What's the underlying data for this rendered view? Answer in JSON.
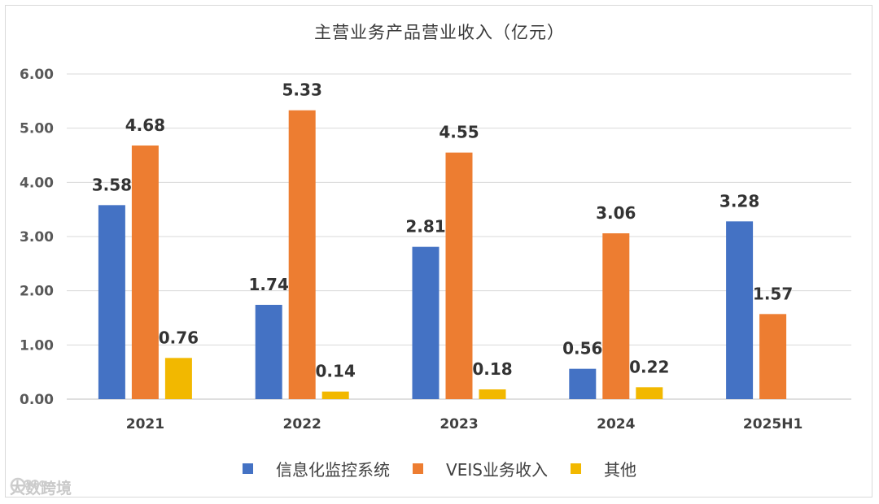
{
  "chart_data": {
    "type": "bar",
    "title": "主营业务产品营业收入（亿元）",
    "categories": [
      "2021",
      "2022",
      "2023",
      "2024",
      "2025H1"
    ],
    "series": [
      {
        "name": "信息化监控系统",
        "color": "#4472C4",
        "values": [
          3.58,
          1.74,
          2.81,
          0.56,
          3.28
        ]
      },
      {
        "name": "VEIS业务收入",
        "color": "#ED7D31",
        "values": [
          4.68,
          5.33,
          4.55,
          3.06,
          1.57
        ]
      },
      {
        "name": "其他",
        "color": "#F2B800",
        "values": [
          0.76,
          0.14,
          0.18,
          0.22,
          null
        ]
      }
    ],
    "value_labels": [
      [
        "3.58",
        "1.74",
        "2.81",
        "0.56",
        "3.28"
      ],
      [
        "4.68",
        "5.33",
        "4.55",
        "3.06",
        "1.57"
      ],
      [
        "0.76",
        "0.14",
        "0.18",
        "0.22",
        null
      ]
    ],
    "y_ticks": [
      "0.00",
      "1.00",
      "2.00",
      "3.00",
      "4.00",
      "5.00",
      "6.00"
    ],
    "ylim": [
      0,
      6
    ],
    "grid": true,
    "legend_position": "bottom",
    "xlabel": "",
    "ylabel": ""
  },
  "watermark": {
    "text": "大数跨境",
    "icon": "chat-bubble-icon"
  },
  "colors": {
    "gridline": "#d9d9d9",
    "axis": "#bfbfbf"
  }
}
